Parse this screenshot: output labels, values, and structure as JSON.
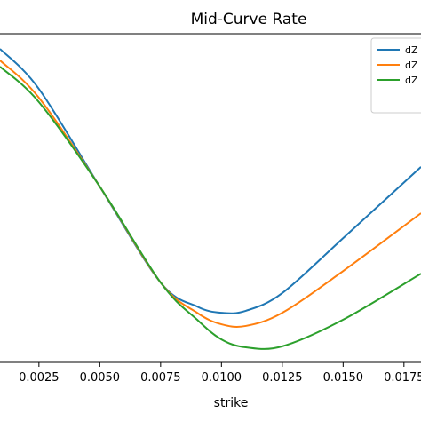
{
  "chart_data": {
    "type": "line",
    "title": "Mid-Curve Rate",
    "xlabel": "strike",
    "x": [
      0.0009,
      0.0025,
      0.005,
      0.0075,
      0.009,
      0.01,
      0.011,
      0.0125,
      0.015,
      0.0182
    ],
    "series": [
      {
        "name": "dZ",
        "color": "#1f77b4",
        "values": [
          95.4,
          83.2,
          53.5,
          24.3,
          17.0,
          15.1,
          15.7,
          21.1,
          37.8,
          59.5
        ]
      },
      {
        "name": "dZ",
        "color": "#ff7f0e",
        "values": [
          91.9,
          80.5,
          53.5,
          24.3,
          15.1,
          11.6,
          11.1,
          15.1,
          27.8,
          45.4
        ]
      },
      {
        "name": "dZ",
        "color": "#2ca02c",
        "values": [
          90.0,
          79.2,
          53.5,
          24.3,
          13.0,
          7.0,
          4.6,
          4.9,
          13.0,
          27.0
        ]
      }
    ],
    "xlim": [
      0.0009,
      0.0182
    ],
    "xticks": [
      {
        "value": 0.0025,
        "label": "0.0025"
      },
      {
        "value": 0.005,
        "label": "0.0050"
      },
      {
        "value": 0.0075,
        "label": "0.0075"
      },
      {
        "value": 0.01,
        "label": "0.0100"
      },
      {
        "value": 0.0125,
        "label": "0.0125"
      },
      {
        "value": 0.015,
        "label": "0.0150"
      },
      {
        "value": 0.0175,
        "label": "0.0175"
      }
    ],
    "ylim": [
      0,
      100
    ]
  }
}
